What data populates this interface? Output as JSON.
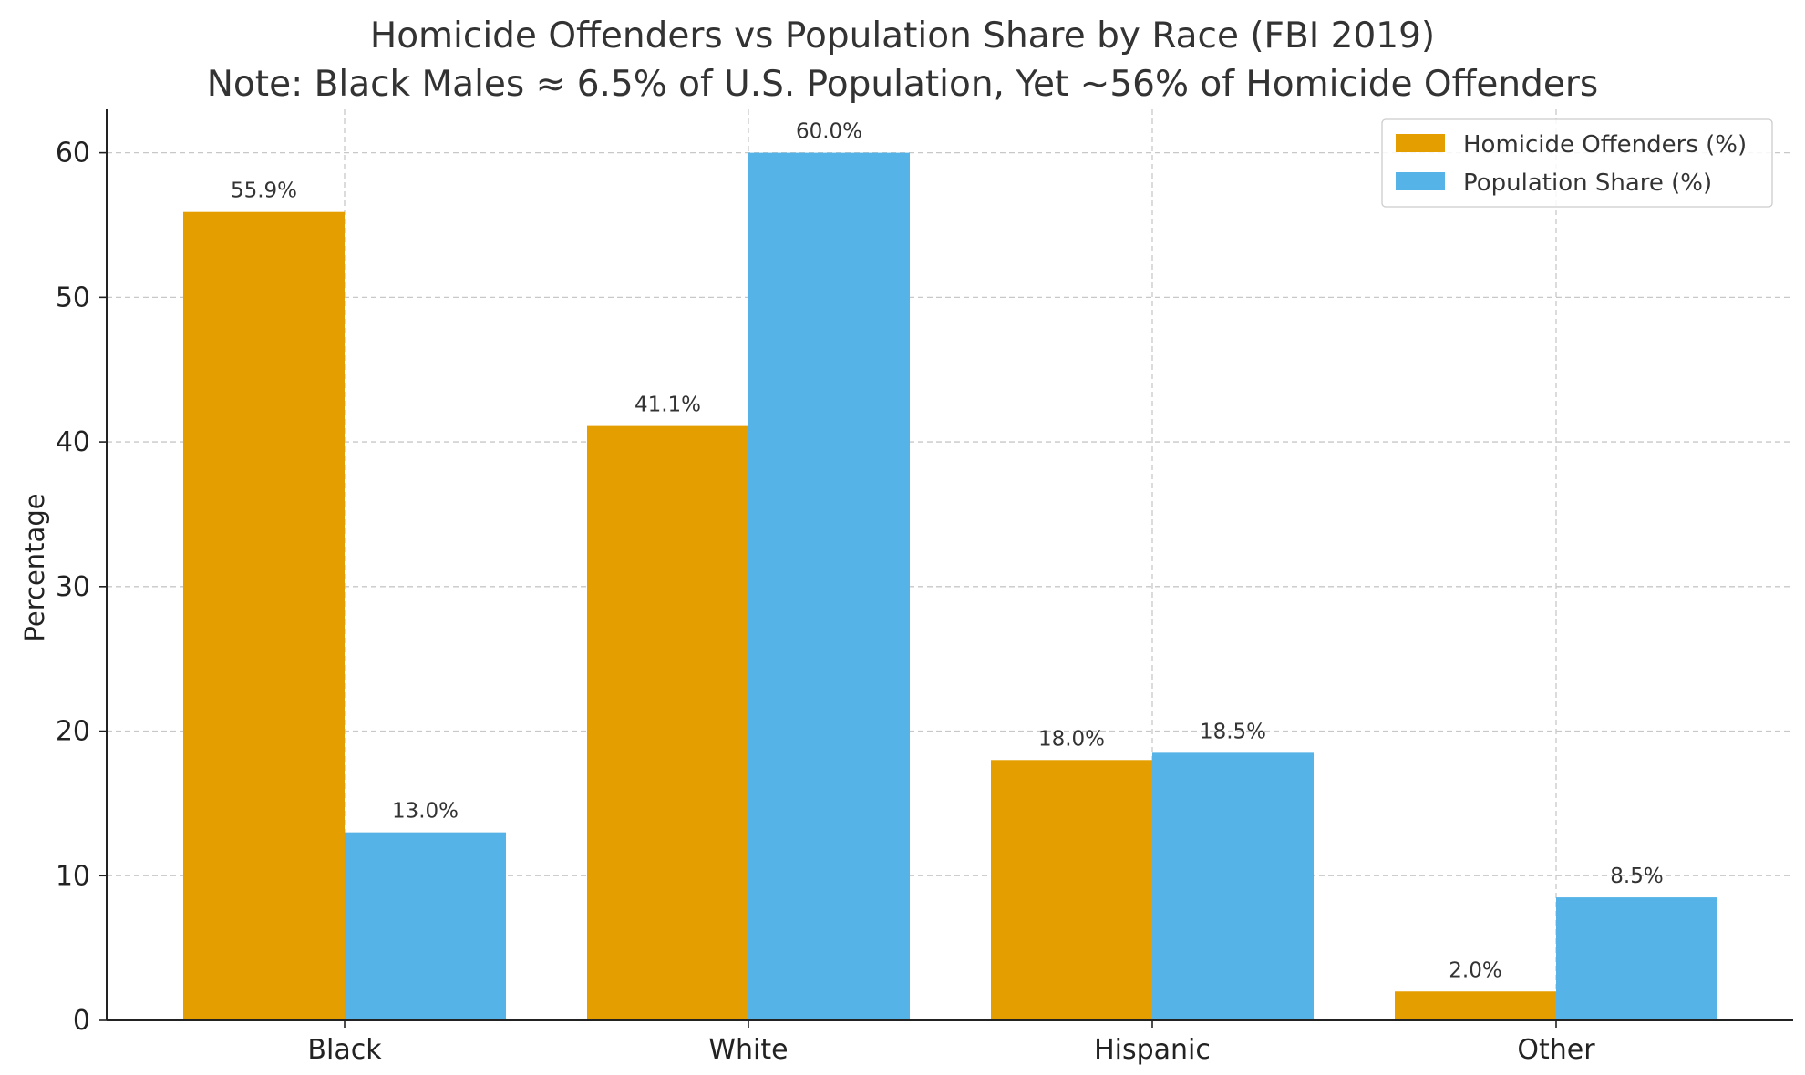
{
  "chart_data": {
    "type": "bar",
    "title_line1": "Homicide Offenders vs Population Share by Race (FBI 2019)",
    "title_line2": "Note: Black Males ≈ 6.5% of U.S. Population, Yet ~56% of Homicide Offenders",
    "xlabel": "",
    "ylabel": "Percentage",
    "categories": [
      "Black",
      "White",
      "Hispanic",
      "Other"
    ],
    "series": [
      {
        "name": "Homicide Offenders (%)",
        "color": "#E49E00",
        "values": [
          55.9,
          41.1,
          18.0,
          2.0
        ],
        "labels": [
          "55.9%",
          "41.1%",
          "18.0%",
          "2.0%"
        ]
      },
      {
        "name": "Population Share (%)",
        "color": "#56B3E7",
        "values": [
          13.0,
          60.0,
          18.5,
          8.5
        ],
        "labels": [
          "13.0%",
          "60.0%",
          "18.5%",
          "8.5%"
        ]
      }
    ],
    "ylim": [
      0,
      63
    ],
    "yticks": [
      0,
      10,
      20,
      30,
      40,
      50,
      60
    ],
    "ytick_labels": [
      "0",
      "10",
      "20",
      "30",
      "40",
      "50",
      "60"
    ],
    "grid": true,
    "legend_position": "top-right"
  }
}
